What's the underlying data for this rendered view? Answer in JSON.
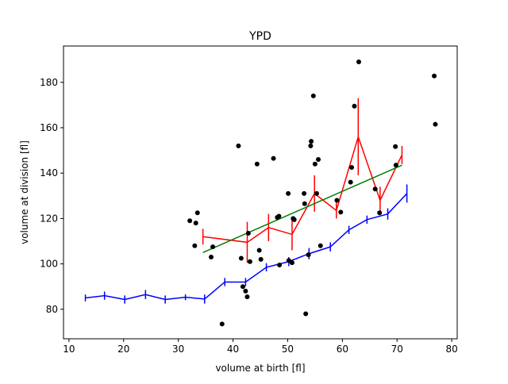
{
  "chart_data": {
    "type": "scatter",
    "title": "YPD",
    "xlabel": "volume at birth [fl]",
    "ylabel": "volume at division [fl]",
    "xlim": [
      9,
      81
    ],
    "ylim": [
      67,
      196
    ],
    "xticks": [
      10,
      20,
      30,
      40,
      50,
      60,
      70,
      80
    ],
    "yticks": [
      80,
      100,
      120,
      140,
      160,
      180
    ],
    "grid": false,
    "colors": {
      "scatter": "#000000",
      "blue": "#0000ff",
      "red": "#ff0000",
      "green": "#008000"
    },
    "scatter_points": [
      [
        32.1,
        119
      ],
      [
        33.0,
        108
      ],
      [
        33.2,
        118
      ],
      [
        33.5,
        122.5
      ],
      [
        36.0,
        103
      ],
      [
        36.3,
        107.5
      ],
      [
        38.0,
        73.5
      ],
      [
        41.0,
        152
      ],
      [
        41.5,
        102.5
      ],
      [
        41.8,
        90
      ],
      [
        42.3,
        88
      ],
      [
        42.6,
        85.5
      ],
      [
        42.8,
        113.5
      ],
      [
        43.1,
        101
      ],
      [
        44.4,
        144
      ],
      [
        44.8,
        106
      ],
      [
        45.1,
        102
      ],
      [
        47.4,
        146.5
      ],
      [
        48.1,
        120.5
      ],
      [
        48.4,
        121
      ],
      [
        48.5,
        99.5
      ],
      [
        50.1,
        131
      ],
      [
        50.2,
        101.5
      ],
      [
        50.8,
        100.5
      ],
      [
        51.0,
        120
      ],
      [
        51.2,
        119.5
      ],
      [
        53.0,
        131
      ],
      [
        53.1,
        126.5
      ],
      [
        53.3,
        78
      ],
      [
        53.8,
        104
      ],
      [
        54.2,
        152
      ],
      [
        54.3,
        154
      ],
      [
        54.7,
        174
      ],
      [
        55.0,
        144
      ],
      [
        55.3,
        131
      ],
      [
        55.6,
        146
      ],
      [
        56.0,
        108
      ],
      [
        59.0,
        128
      ],
      [
        59.7,
        122.8
      ],
      [
        61.5,
        136
      ],
      [
        61.7,
        142.5
      ],
      [
        62.2,
        169.5
      ],
      [
        63.0,
        189
      ],
      [
        66.0,
        133
      ],
      [
        66.8,
        122.5
      ],
      [
        69.7,
        151.7
      ],
      [
        69.8,
        143.5
      ],
      [
        76.8,
        182.8
      ],
      [
        77.0,
        161.5
      ]
    ],
    "series": [
      {
        "color": "#0000ff",
        "x": [
          13,
          16.5,
          20.2,
          24,
          27.6,
          31.3,
          34.8,
          38.5,
          42.3,
          46.1,
          50.2,
          53.9,
          57.8,
          61.2,
          64.5,
          68.3,
          71.8
        ],
        "y": [
          85,
          86,
          84.3,
          86.5,
          84.3,
          85.3,
          84.5,
          92,
          92,
          98.5,
          101,
          104.5,
          107.5,
          115,
          119.5,
          122,
          131
        ],
        "err": [
          1.5,
          1.8,
          1.8,
          2,
          1.8,
          1.3,
          2,
          1.8,
          1.8,
          1.8,
          2,
          2.5,
          2,
          1.8,
          1.8,
          2.5,
          4
        ]
      },
      {
        "color": "#ff0000",
        "x": [
          34.5,
          42.6,
          46.5,
          50.8,
          54.9,
          58.9,
          62.9,
          66.9,
          70.9
        ],
        "y": [
          112,
          109.5,
          116,
          113,
          131,
          123.5,
          156,
          128,
          148
        ],
        "err": [
          3.5,
          9,
          6,
          7,
          8,
          3.5,
          17,
          6,
          4
        ]
      },
      {
        "color": "#008000",
        "x": [
          34.5,
          70.9
        ],
        "y": [
          105,
          143.5
        ],
        "err": []
      }
    ]
  }
}
